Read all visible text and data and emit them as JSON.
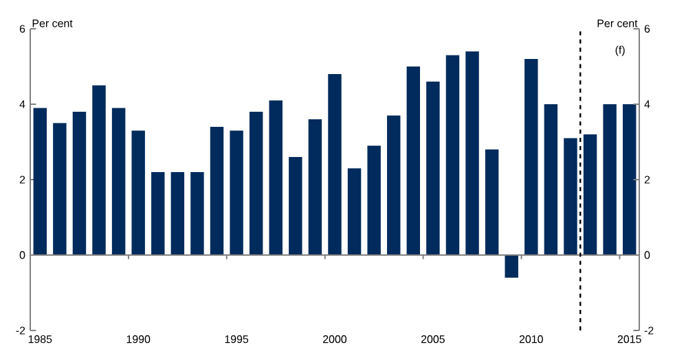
{
  "chart_data": {
    "type": "bar",
    "x": [
      1985,
      1986,
      1987,
      1988,
      1989,
      1990,
      1991,
      1992,
      1993,
      1994,
      1995,
      1996,
      1997,
      1998,
      1999,
      2000,
      2001,
      2002,
      2003,
      2004,
      2005,
      2006,
      2007,
      2008,
      2009,
      2010,
      2011,
      2012,
      2013,
      2014,
      2015
    ],
    "values": [
      3.9,
      3.5,
      3.8,
      4.5,
      3.9,
      3.3,
      2.2,
      2.2,
      2.2,
      3.4,
      3.3,
      3.8,
      4.1,
      2.6,
      3.6,
      4.8,
      2.3,
      2.9,
      3.7,
      5.0,
      4.6,
      5.3,
      5.4,
      2.8,
      -0.6,
      5.2,
      4.0,
      3.1,
      3.2,
      4.0,
      4.0
    ],
    "color": "#002b5c",
    "xlim": [
      1984.5,
      2015.5
    ],
    "xticks": [
      1985,
      1990,
      1995,
      2000,
      2005,
      2010,
      2015
    ],
    "ylim": [
      -2,
      6
    ],
    "yticks": [
      -2,
      0,
      2,
      4,
      6
    ],
    "y2lim": [
      -2,
      6
    ],
    "y2ticks": [
      -2,
      0,
      2,
      4,
      6
    ],
    "ylabel": "Per cent",
    "y2label": "Per cent",
    "ref_lines": [
      {
        "axis": "x",
        "value": 2012.5,
        "color": "#000000",
        "line_style": "dashed"
      }
    ],
    "annotations": [
      "(f)"
    ]
  }
}
